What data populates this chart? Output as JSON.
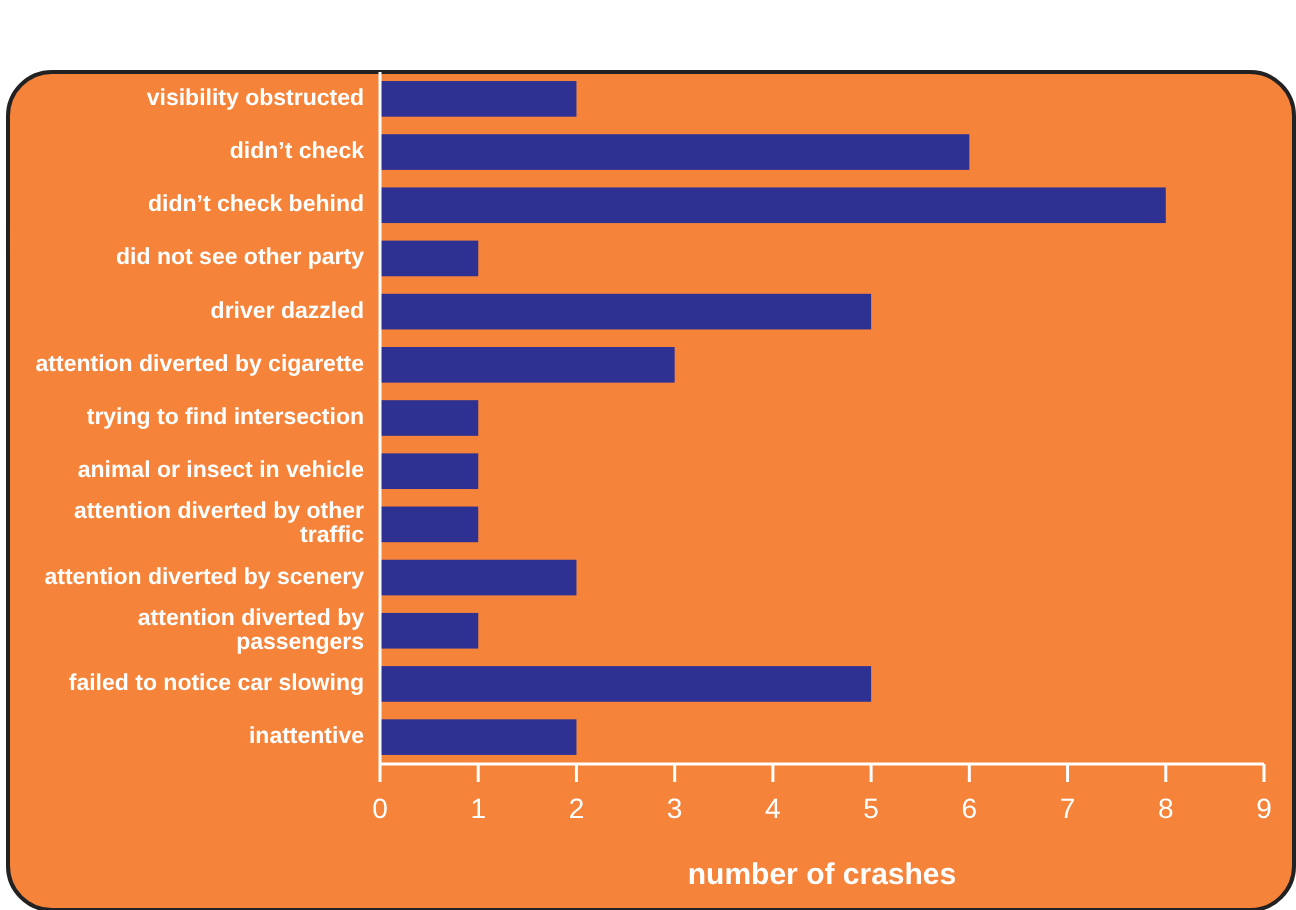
{
  "chart_data": {
    "type": "bar",
    "orientation": "horizontal",
    "xlabel": "number of crashes",
    "categories": [
      "visibility obstructed",
      "didn’t check",
      "didn’t check behind",
      "did not see other party",
      "driver dazzled",
      "attention diverted by cigarette",
      "trying to find intersection",
      "animal or insect in vehicle",
      "attention diverted by other traffic",
      "attention diverted by scenery",
      "attention diverted by passengers",
      "failed to notice car slowing",
      "inattentive"
    ],
    "values": [
      2,
      6,
      8,
      1,
      5,
      3,
      1,
      1,
      1,
      2,
      1,
      5,
      2
    ],
    "color": "#2e3192",
    "xlim": [
      0,
      9
    ],
    "xticks": [
      0,
      1,
      2,
      3,
      4,
      5,
      6,
      7,
      8,
      9
    ],
    "grid": false
  }
}
